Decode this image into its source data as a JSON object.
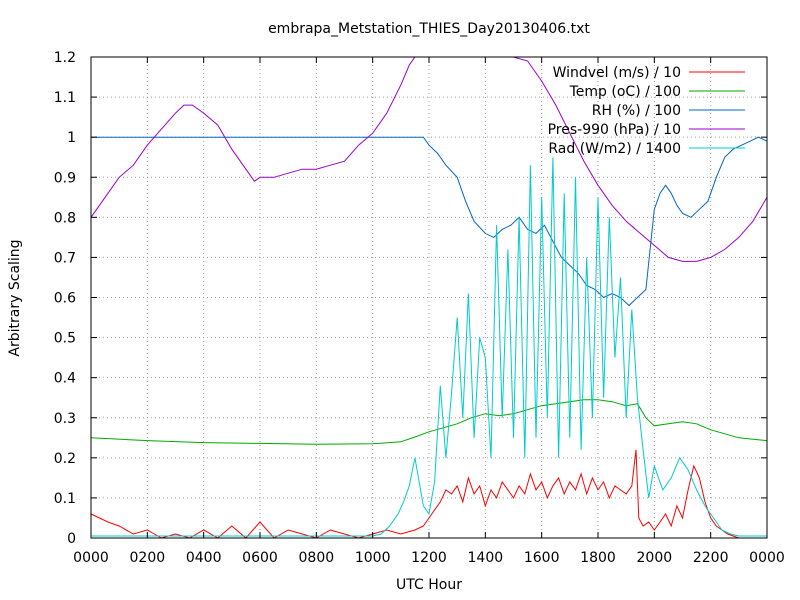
{
  "chart_data": {
    "type": "line",
    "title": "embrapa_Metstation_THIES_Day20130406.txt",
    "xlabel": "UTC Hour",
    "ylabel": "Arbitrary Scaling",
    "xlim": [
      0,
      24
    ],
    "ylim": [
      0,
      1.2
    ],
    "xticks": [
      {
        "value": 0,
        "label": "0000"
      },
      {
        "value": 2,
        "label": "0200"
      },
      {
        "value": 4,
        "label": "0400"
      },
      {
        "value": 6,
        "label": "0600"
      },
      {
        "value": 8,
        "label": "0800"
      },
      {
        "value": 10,
        "label": "1000"
      },
      {
        "value": 12,
        "label": "1200"
      },
      {
        "value": 14,
        "label": "1400"
      },
      {
        "value": 16,
        "label": "1600"
      },
      {
        "value": 18,
        "label": "1800"
      },
      {
        "value": 20,
        "label": "2000"
      },
      {
        "value": 22,
        "label": "2200"
      },
      {
        "value": 24,
        "label": "0000"
      }
    ],
    "yticks": [
      {
        "value": 0,
        "label": "0"
      },
      {
        "value": 0.1,
        "label": "0.1"
      },
      {
        "value": 0.2,
        "label": "0.2"
      },
      {
        "value": 0.3,
        "label": "0.3"
      },
      {
        "value": 0.4,
        "label": "0.4"
      },
      {
        "value": 0.5,
        "label": "0.5"
      },
      {
        "value": 0.6,
        "label": "0.6"
      },
      {
        "value": 0.7,
        "label": "0.7"
      },
      {
        "value": 0.8,
        "label": "0.8"
      },
      {
        "value": 0.9,
        "label": "0.9"
      },
      {
        "value": 1.0,
        "label": "1"
      },
      {
        "value": 1.1,
        "label": "1.1"
      },
      {
        "value": 1.2,
        "label": "1.2"
      }
    ],
    "grid": true,
    "legend_position": "top-right",
    "series": [
      {
        "name": "Windvel (m/s) / 10",
        "color": "#ff0000",
        "x": [
          0,
          0.3,
          0.6,
          1,
          1.5,
          2,
          2.5,
          3,
          3.5,
          4,
          4.5,
          5,
          5.5,
          6,
          6.5,
          7,
          7.5,
          8,
          8.5,
          9,
          9.5,
          10,
          10.5,
          11,
          11.5,
          11.8,
          12,
          12.2,
          12.4,
          12.6,
          12.8,
          13,
          13.2,
          13.4,
          13.6,
          13.8,
          14,
          14.2,
          14.4,
          14.6,
          14.8,
          15,
          15.2,
          15.4,
          15.6,
          15.8,
          16,
          16.2,
          16.4,
          16.6,
          16.8,
          17,
          17.2,
          17.4,
          17.6,
          17.8,
          18,
          18.2,
          18.4,
          18.6,
          18.8,
          19,
          19.2,
          19.35,
          19.45,
          19.6,
          19.8,
          20,
          20.2,
          20.4,
          20.6,
          20.8,
          21,
          21.2,
          21.4,
          21.6,
          21.8,
          22,
          22.2,
          22.4,
          22.6,
          23,
          23.5,
          24
        ],
        "y": [
          0.06,
          0.05,
          0.04,
          0.03,
          0.01,
          0.02,
          0,
          0.01,
          0,
          0.02,
          0,
          0.03,
          0,
          0.04,
          0,
          0.02,
          0.01,
          0,
          0.02,
          0.01,
          0,
          0.01,
          0.02,
          0.01,
          0.02,
          0.03,
          0.05,
          0.07,
          0.09,
          0.12,
          0.11,
          0.13,
          0.09,
          0.15,
          0.11,
          0.13,
          0.08,
          0.12,
          0.1,
          0.14,
          0.12,
          0.1,
          0.13,
          0.11,
          0.16,
          0.12,
          0.14,
          0.1,
          0.13,
          0.15,
          0.11,
          0.14,
          0.12,
          0.16,
          0.11,
          0.15,
          0.12,
          0.14,
          0.1,
          0.13,
          0.12,
          0.11,
          0.13,
          0.22,
          0.05,
          0.03,
          0.04,
          0.02,
          0.04,
          0.06,
          0.03,
          0.08,
          0.05,
          0.12,
          0.18,
          0.15,
          0.09,
          0.05,
          0.03,
          0.02,
          0.01,
          0,
          0,
          0
        ]
      },
      {
        "name": "Temp (oC) / 100",
        "color": "#00aa00",
        "x": [
          0,
          2,
          4,
          6,
          8,
          10,
          11,
          11.5,
          12,
          12.5,
          13,
          13.5,
          14,
          14.5,
          15,
          15.5,
          16,
          16.5,
          17,
          17.5,
          18,
          18.5,
          19,
          19.4,
          19.7,
          20,
          20.5,
          21,
          21.5,
          22,
          23,
          24
        ],
        "y": [
          0.25,
          0.243,
          0.238,
          0.236,
          0.234,
          0.235,
          0.24,
          0.252,
          0.265,
          0.275,
          0.285,
          0.3,
          0.31,
          0.305,
          0.31,
          0.32,
          0.33,
          0.335,
          0.34,
          0.345,
          0.345,
          0.34,
          0.33,
          0.335,
          0.3,
          0.28,
          0.285,
          0.29,
          0.285,
          0.27,
          0.25,
          0.243
        ]
      },
      {
        "name": "RH (%) / 100",
        "color": "#0066cc",
        "x": [
          0,
          2,
          4,
          6,
          8,
          10,
          11,
          11.8,
          12,
          12.3,
          12.6,
          13,
          13.3,
          13.6,
          14,
          14.3,
          14.6,
          14.9,
          15.2,
          15.5,
          15.8,
          16.1,
          16.4,
          16.7,
          17,
          17.3,
          17.6,
          17.9,
          18.2,
          18.5,
          18.8,
          19.1,
          19.4,
          19.7,
          20,
          20.2,
          20.4,
          20.6,
          20.8,
          21,
          21.3,
          21.6,
          21.9,
          22.2,
          22.5,
          22.8,
          23.1,
          23.4,
          23.7,
          24
        ],
        "y": [
          1,
          1,
          1,
          1,
          1,
          1,
          1,
          1,
          0.98,
          0.96,
          0.93,
          0.9,
          0.84,
          0.79,
          0.76,
          0.75,
          0.77,
          0.78,
          0.8,
          0.77,
          0.76,
          0.78,
          0.74,
          0.7,
          0.68,
          0.66,
          0.63,
          0.62,
          0.6,
          0.61,
          0.6,
          0.58,
          0.6,
          0.62,
          0.82,
          0.86,
          0.88,
          0.86,
          0.83,
          0.81,
          0.8,
          0.82,
          0.84,
          0.9,
          0.95,
          0.97,
          0.98,
          0.99,
          1,
          0.99
        ]
      },
      {
        "name": "Pres-990 (hPa) / 10",
        "color": "#9900cc",
        "x": [
          0,
          0.5,
          1,
          1.5,
          2,
          2.5,
          3,
          3.3,
          3.6,
          4,
          4.5,
          5,
          5.5,
          5.8,
          6,
          6.5,
          7,
          7.5,
          8,
          8.5,
          9,
          9.5,
          10,
          10.5,
          11,
          11.3,
          11.5,
          12,
          13,
          14,
          15,
          15.5,
          16,
          16.5,
          17,
          17.5,
          18,
          18.5,
          19,
          19.5,
          20,
          20.5,
          21,
          21.5,
          22,
          22.5,
          23,
          23.5,
          24
        ],
        "y": [
          0.8,
          0.85,
          0.9,
          0.93,
          0.98,
          1.02,
          1.06,
          1.08,
          1.08,
          1.06,
          1.03,
          0.97,
          0.92,
          0.89,
          0.9,
          0.9,
          0.91,
          0.92,
          0.92,
          0.93,
          0.94,
          0.98,
          1.01,
          1.06,
          1.13,
          1.18,
          1.2,
          1.2,
          1.2,
          1.2,
          1.2,
          1.19,
          1.14,
          1.08,
          1.01,
          0.94,
          0.88,
          0.83,
          0.79,
          0.76,
          0.73,
          0.7,
          0.69,
          0.69,
          0.7,
          0.72,
          0.75,
          0.79,
          0.85
        ]
      },
      {
        "name": "Rad (W/m2) / 1400",
        "color": "#00cccc",
        "x": [
          0,
          2,
          4,
          6,
          8,
          9,
          10,
          10.3,
          10.6,
          10.9,
          11.1,
          11.3,
          11.5,
          11.8,
          12,
          12.2,
          12.4,
          12.6,
          12.8,
          13,
          13.2,
          13.4,
          13.6,
          13.8,
          14,
          14.2,
          14.4,
          14.6,
          14.8,
          15,
          15.2,
          15.4,
          15.6,
          15.8,
          16,
          16.2,
          16.4,
          16.6,
          16.8,
          17,
          17.2,
          17.4,
          17.6,
          17.8,
          18,
          18.2,
          18.4,
          18.6,
          18.8,
          19,
          19.2,
          19.4,
          19.6,
          19.8,
          20,
          20.3,
          20.6,
          20.9,
          21.2,
          21.5,
          21.8,
          22.1,
          22.4,
          22.7,
          23,
          24
        ],
        "y": [
          0.005,
          0.005,
          0.005,
          0.005,
          0.005,
          0.005,
          0.005,
          0.01,
          0.03,
          0.06,
          0.09,
          0.13,
          0.2,
          0.08,
          0.06,
          0.14,
          0.38,
          0.2,
          0.36,
          0.55,
          0.3,
          0.61,
          0.25,
          0.5,
          0.45,
          0.2,
          0.78,
          0.3,
          0.72,
          0.25,
          0.8,
          0.2,
          0.93,
          0.25,
          0.85,
          0.3,
          0.95,
          0.2,
          0.86,
          0.25,
          0.9,
          0.22,
          0.7,
          0.3,
          0.85,
          0.35,
          0.8,
          0.45,
          0.65,
          0.3,
          0.57,
          0.35,
          0.22,
          0.1,
          0.18,
          0.12,
          0.15,
          0.2,
          0.17,
          0.12,
          0.08,
          0.05,
          0.02,
          0.01,
          0.005,
          0.005
        ]
      }
    ]
  }
}
